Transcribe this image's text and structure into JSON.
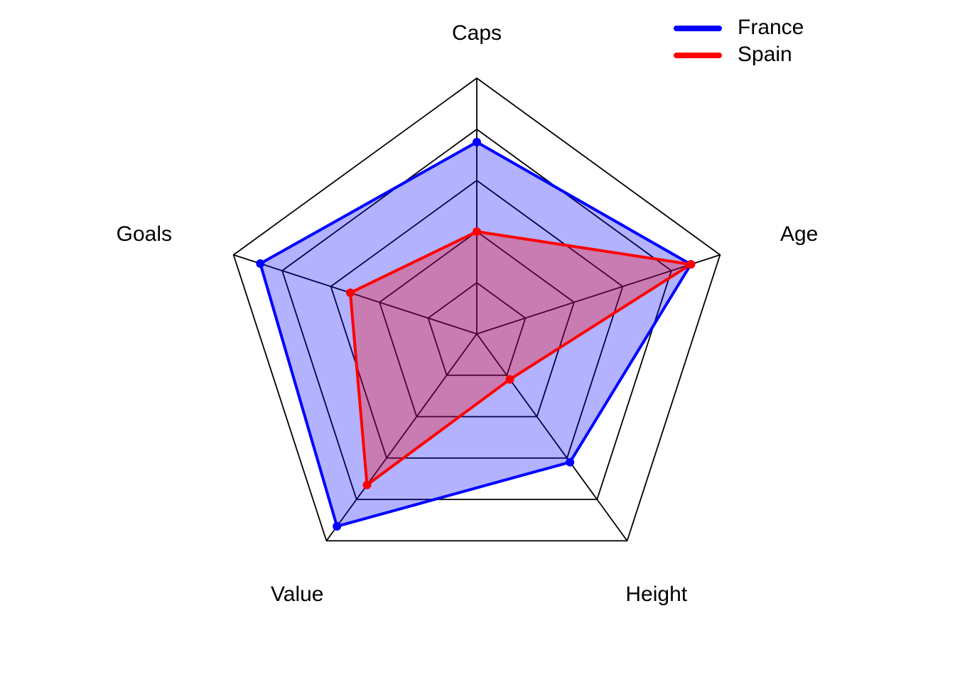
{
  "chart_data": {
    "type": "radar",
    "title": "",
    "axes": [
      "Caps",
      "Age",
      "Height",
      "Value",
      "Goals"
    ],
    "scale": {
      "min": 0,
      "max": 1,
      "rings": 5
    },
    "grid": true,
    "legend": {
      "placement": "top-right"
    },
    "series": [
      {
        "name": "France",
        "color": "#0000ff",
        "fill": "#0000ff",
        "fill_opacity": 0.3,
        "values": [
          0.75,
          0.88,
          0.62,
          0.93,
          0.89
        ]
      },
      {
        "name": "Spain",
        "color": "#ff0000",
        "fill": "#ff0000",
        "fill_opacity": 0.3,
        "values": [
          0.4,
          0.88,
          0.22,
          0.73,
          0.52
        ]
      }
    ]
  }
}
